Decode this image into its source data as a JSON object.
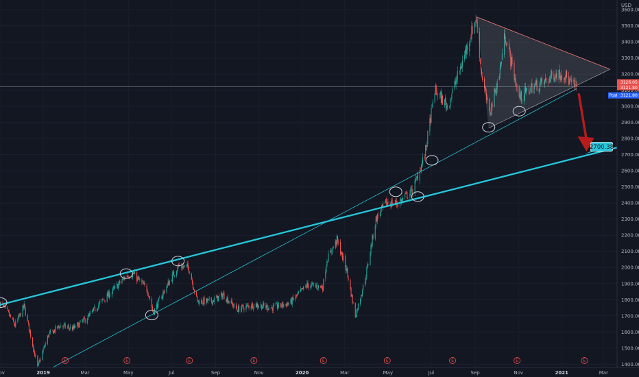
{
  "chart_data": {
    "type": "candlestick",
    "currency": "USD",
    "y_ticks": [
      1400,
      1500,
      1600,
      1700,
      1800,
      1900,
      2000,
      2100,
      2200,
      2300,
      2400,
      2500,
      2600,
      2700,
      2800,
      2900,
      3000,
      3100,
      3200,
      3300,
      3400,
      3500,
      3600
    ],
    "y_tick_labels": [
      "1400.00",
      "1500.00",
      "1600.00",
      "1700.00",
      "1800.00",
      "1900.00",
      "2000.00",
      "2100.00",
      "2200.00",
      "2300.00",
      "2400.00",
      "2500.00",
      "2600.00",
      "2700.00",
      "2800.00",
      "2900.00",
      "3000.00",
      "3100.00",
      "3200.00",
      "3300.00",
      "3400.00",
      "3500.00",
      "3600.00"
    ],
    "x_ticks": [
      {
        "label": "Nov",
        "date": "2018-11-01",
        "bold": false
      },
      {
        "label": "2019",
        "date": "2019-01-01",
        "bold": true
      },
      {
        "label": "Mar",
        "date": "2019-03-01",
        "bold": false
      },
      {
        "label": "May",
        "date": "2019-05-01",
        "bold": false
      },
      {
        "label": "Jul",
        "date": "2019-07-01",
        "bold": false
      },
      {
        "label": "Sep",
        "date": "2019-09-01",
        "bold": false
      },
      {
        "label": "Nov",
        "date": "2019-11-01",
        "bold": false
      },
      {
        "label": "2020",
        "date": "2020-01-01",
        "bold": true
      },
      {
        "label": "Mar",
        "date": "2020-03-01",
        "bold": false
      },
      {
        "label": "May",
        "date": "2020-05-01",
        "bold": false
      },
      {
        "label": "Jul",
        "date": "2020-07-01",
        "bold": false
      },
      {
        "label": "Sep",
        "date": "2020-09-01",
        "bold": false
      },
      {
        "label": "Nov",
        "date": "2020-11-01",
        "bold": false
      },
      {
        "label": "2021",
        "date": "2021-01-01",
        "bold": true
      },
      {
        "label": "Mar",
        "date": "2021-03-01",
        "bold": false
      }
    ],
    "x_range": [
      "2018-11-01",
      "2021-03-20"
    ],
    "ylim": [
      1380,
      3660
    ],
    "price_path": [
      [
        "2018-11-01",
        1780
      ],
      [
        "2018-11-12",
        1720
      ],
      [
        "2018-11-22",
        1640
      ],
      [
        "2018-12-05",
        1760
      ],
      [
        "2018-12-15",
        1560
      ],
      [
        "2018-12-24",
        1380
      ],
      [
        "2019-01-08",
        1580
      ],
      [
        "2019-01-25",
        1640
      ],
      [
        "2019-02-12",
        1620
      ],
      [
        "2019-03-05",
        1690
      ],
      [
        "2019-03-22",
        1780
      ],
      [
        "2019-04-10",
        1860
      ],
      [
        "2019-04-28",
        1950
      ],
      [
        "2019-05-08",
        1960
      ],
      [
        "2019-05-28",
        1860
      ],
      [
        "2019-06-05",
        1720
      ],
      [
        "2019-06-20",
        1850
      ],
      [
        "2019-07-10",
        2010
      ],
      [
        "2019-07-25",
        2000
      ],
      [
        "2019-08-06",
        1790
      ],
      [
        "2019-08-25",
        1790
      ],
      [
        "2019-09-12",
        1830
      ],
      [
        "2019-10-01",
        1740
      ],
      [
        "2019-10-25",
        1770
      ],
      [
        "2019-11-20",
        1750
      ],
      [
        "2019-12-15",
        1780
      ],
      [
        "2020-01-08",
        1890
      ],
      [
        "2020-01-30",
        1880
      ],
      [
        "2020-02-05",
        2050
      ],
      [
        "2020-02-19",
        2170
      ],
      [
        "2020-03-04",
        1980
      ],
      [
        "2020-03-16",
        1700
      ],
      [
        "2020-03-30",
        1930
      ],
      [
        "2020-04-14",
        2300
      ],
      [
        "2020-04-28",
        2400
      ],
      [
        "2020-05-15",
        2400
      ],
      [
        "2020-06-05",
        2480
      ],
      [
        "2020-06-22",
        2700
      ],
      [
        "2020-07-06",
        3100
      ],
      [
        "2020-07-24",
        3000
      ],
      [
        "2020-08-12",
        3250
      ],
      [
        "2020-09-02",
        3550
      ],
      [
        "2020-09-10",
        3200
      ],
      [
        "2020-09-21",
        2950
      ],
      [
        "2020-10-05",
        3200
      ],
      [
        "2020-10-13",
        3450
      ],
      [
        "2020-11-02",
        3050
      ],
      [
        "2020-11-20",
        3120
      ],
      [
        "2020-12-08",
        3150
      ],
      [
        "2020-12-22",
        3200
      ],
      [
        "2021-01-05",
        3200
      ],
      [
        "2021-01-14",
        3140
      ],
      [
        "2021-01-22",
        3121.8
      ]
    ],
    "price_labels": {
      "high": "3126.05",
      "close": "3121.80",
      "post_tag": "Post",
      "post": "3121.80"
    },
    "current_price": 3121.8,
    "trendlines": [
      {
        "name": "channel-support",
        "style": "thick",
        "from": [
          "2018-10-20",
          1755
        ],
        "to": [
          "2021-03-25",
          2750
        ]
      },
      {
        "name": "rising-support",
        "style": "thin",
        "from": [
          "2018-12-24",
          1330
        ],
        "to": [
          "2021-01-22",
          3110
        ]
      }
    ],
    "triangle": [
      [
        "2020-09-03",
        3555
      ],
      [
        "2021-03-10",
        3230
      ],
      [
        "2020-09-20",
        2865
      ]
    ],
    "touch_points": [
      [
        "2018-11-02",
        1782
      ],
      [
        "2019-04-28",
        1962
      ],
      [
        "2019-07-10",
        2040
      ],
      [
        "2019-06-03",
        1705
      ],
      [
        "2020-05-12",
        2470
      ],
      [
        "2020-06-12",
        2440
      ],
      [
        "2020-07-02",
        2665
      ],
      [
        "2020-09-20",
        2870
      ],
      [
        "2020-11-02",
        2970
      ]
    ],
    "projection": {
      "from": [
        "2021-01-25",
        3080
      ],
      "to": [
        "2021-02-05",
        2720
      ]
    },
    "target_label": "2700.38",
    "target_value": 2700.38,
    "earnings_dates": [
      "2019-02-01",
      "2019-04-29",
      "2019-07-26",
      "2019-10-25",
      "2020-01-31",
      "2020-04-30",
      "2020-07-31",
      "2020-10-30",
      "2021-02-02"
    ],
    "earnings_marker": "E"
  }
}
